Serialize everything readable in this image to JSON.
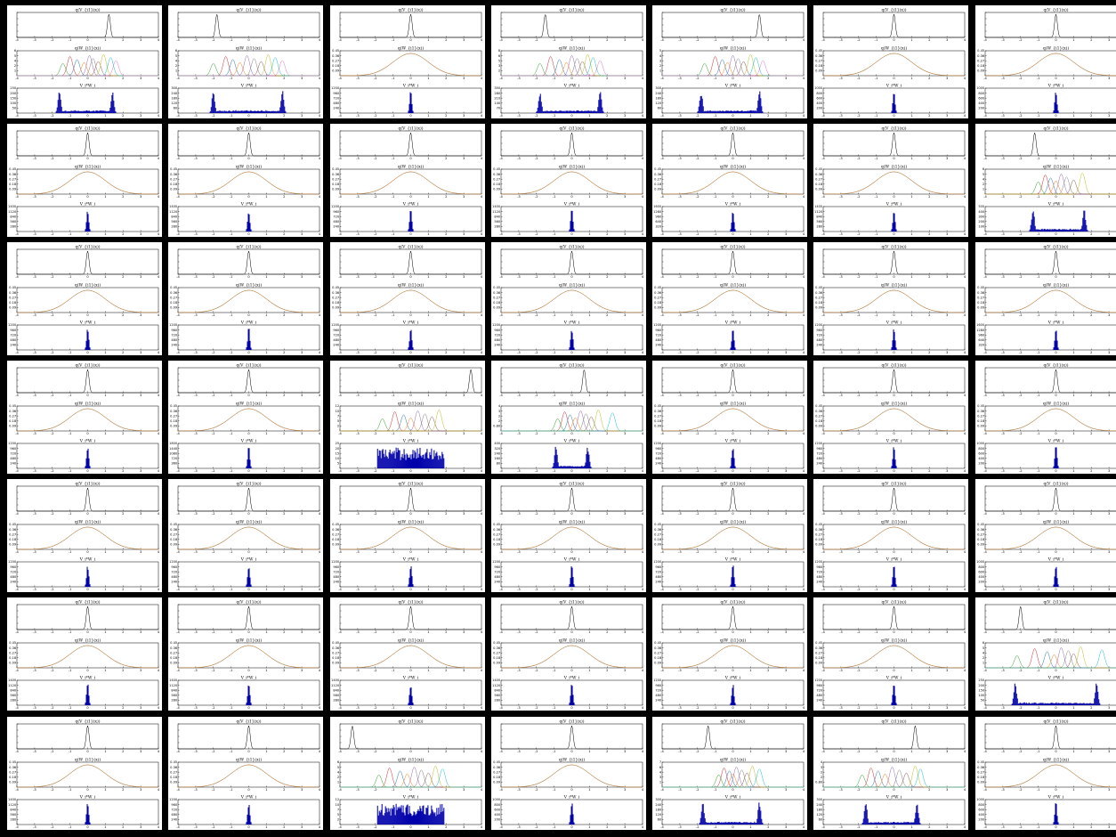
{
  "figure": {
    "rows": 7,
    "cols": 7,
    "titles": [
      "q(V_{i1}(x))",
      "q(W_{i1}(x))",
      "V_i*W_i"
    ],
    "x_ticks": [
      "-4",
      "-3",
      "-2",
      "-1",
      "0",
      "1",
      "2",
      "3",
      "4"
    ]
  },
  "colors": {
    "panel_bg": "#ffffff",
    "separator": "#000000",
    "top_curve": "#000000",
    "hist": "#0000aa",
    "gauss": "#a0786a",
    "mix": [
      "#2ca02c",
      "#d62728",
      "#1f77b4",
      "#ff7f0e",
      "#9467bd",
      "#7f7f7f",
      "#8c564b",
      "#bcbd22",
      "#17becf",
      "#e377c2"
    ]
  },
  "chart_data": {
    "type": "grid-of-small-multiples",
    "panels": [
      {
        "id": "r1c1",
        "top_peak": 1.2,
        "mid": {
          "kind": "mix",
          "centers": [
            -1.4,
            -1.0,
            -0.6,
            -0.2,
            0.1,
            0.3,
            0.6,
            0.9,
            1.3,
            1.6
          ],
          "ymax": 6
        },
        "hist": {
          "kind": "bimodal",
          "a": -1.6,
          "b": 1.4,
          "ymax": 250
        }
      },
      {
        "id": "r1c2",
        "top_peak": -1.8,
        "mid": {
          "kind": "mix",
          "centers": [
            -2.0,
            -1.3,
            -0.9,
            -0.5,
            -0.1,
            0.3,
            0.7,
            1.1,
            1.5,
            1.9
          ],
          "ymax": 6
        },
        "hist": {
          "kind": "bimodal",
          "a": -2.0,
          "b": 1.9,
          "ymax": 300
        }
      },
      {
        "id": "r1c3",
        "top_peak": 0.0,
        "mid": {
          "kind": "gauss",
          "ymax": 0.45
        },
        "hist": {
          "kind": "spike",
          "ymax": 1200
        }
      },
      {
        "id": "r1c4",
        "top_peak": -1.5,
        "mid": {
          "kind": "mix",
          "centers": [
            -1.8,
            -1.2,
            -0.7,
            -0.3,
            0.0,
            0.3,
            0.6,
            0.9,
            1.2,
            1.6
          ],
          "ymax": 8
        },
        "hist": {
          "kind": "bimodal",
          "a": -1.8,
          "b": 1.6,
          "ymax": 350
        }
      },
      {
        "id": "r1c5",
        "top_peak": 1.5,
        "mid": {
          "kind": "mix",
          "centers": [
            -1.6,
            -1.0,
            -0.6,
            -0.3,
            0.0,
            0.3,
            0.6,
            1.0,
            1.3,
            1.7
          ],
          "ymax": 5
        },
        "hist": {
          "kind": "bimodal",
          "a": -1.8,
          "b": 1.5,
          "ymax": 300
        }
      },
      {
        "id": "r1c6",
        "top_peak": 0.0,
        "mid": {
          "kind": "gauss",
          "ymax": 0.45
        },
        "hist": {
          "kind": "spike",
          "ymax": 1000
        }
      },
      {
        "id": "r1c7",
        "top_peak": 0.0,
        "mid": {
          "kind": "gauss",
          "ymax": 0.45
        },
        "hist": {
          "kind": "spike",
          "ymax": 1000
        }
      },
      {
        "id": "r2c1",
        "top_peak": 0.0,
        "mid": {
          "kind": "gauss",
          "ymax": 0.45
        },
        "hist": {
          "kind": "spike",
          "ymax": 1400
        }
      },
      {
        "id": "r2c2",
        "top_peak": 0.0,
        "mid": {
          "kind": "gauss",
          "ymax": 0.45
        },
        "hist": {
          "kind": "spike",
          "ymax": 1400
        }
      },
      {
        "id": "r2c3",
        "top_peak": 0.0,
        "mid": {
          "kind": "gauss",
          "ymax": 0.45
        },
        "hist": {
          "kind": "spike",
          "ymax": 1200
        }
      },
      {
        "id": "r2c4",
        "top_peak": 0.0,
        "mid": {
          "kind": "gauss",
          "ymax": 0.45
        },
        "hist": {
          "kind": "spike",
          "ymax": 1400
        }
      },
      {
        "id": "r2c5",
        "top_peak": 0.0,
        "mid": {
          "kind": "gauss",
          "ymax": 0.45
        },
        "hist": {
          "kind": "spike",
          "ymax": 1600
        }
      },
      {
        "id": "r2c6",
        "top_peak": 0.0,
        "mid": {
          "kind": "gauss",
          "ymax": 0.45
        },
        "hist": {
          "kind": "spike",
          "ymax": 1400
        }
      },
      {
        "id": "r2c7",
        "top_peak": -1.2,
        "mid": {
          "kind": "mix",
          "centers": [
            -1.0,
            -0.6,
            -0.3,
            0.0,
            0.3,
            0.6,
            1.0,
            1.5
          ],
          "ymax": 6
        },
        "hist": {
          "kind": "bimodal",
          "a": -1.3,
          "b": 1.6,
          "ymax": 500
        }
      },
      {
        "id": "r3c1",
        "top_peak": 0.0,
        "mid": {
          "kind": "gauss",
          "ymax": 0.45
        },
        "hist": {
          "kind": "spike",
          "ymax": 1200
        }
      },
      {
        "id": "r3c2",
        "top_peak": 0.0,
        "mid": {
          "kind": "gauss",
          "ymax": 0.45
        },
        "hist": {
          "kind": "spike",
          "ymax": 1200
        }
      },
      {
        "id": "r3c3",
        "top_peak": 0.0,
        "mid": {
          "kind": "gauss",
          "ymax": 0.45
        },
        "hist": {
          "kind": "spike",
          "ymax": 1200
        }
      },
      {
        "id": "r3c4",
        "top_peak": 0.0,
        "mid": {
          "kind": "gauss",
          "ymax": 0.45
        },
        "hist": {
          "kind": "spike",
          "ymax": 1200
        }
      },
      {
        "id": "r3c5",
        "top_peak": 0.0,
        "mid": {
          "kind": "gauss",
          "ymax": 0.45
        },
        "hist": {
          "kind": "spike",
          "ymax": 1200
        }
      },
      {
        "id": "r3c6",
        "top_peak": 0.0,
        "mid": {
          "kind": "gauss",
          "ymax": 0.45
        },
        "hist": {
          "kind": "spike",
          "ymax": 1200
        }
      },
      {
        "id": "r3c7",
        "top_peak": 0.0,
        "mid": {
          "kind": "gauss",
          "ymax": 0.45
        },
        "hist": {
          "kind": "spike",
          "ymax": 1600
        }
      },
      {
        "id": "r4c1",
        "top_peak": 0.0,
        "mid": {
          "kind": "gauss",
          "ymax": 0.45
        },
        "hist": {
          "kind": "spike",
          "ymax": 1200
        }
      },
      {
        "id": "r4c2",
        "top_peak": 0.0,
        "mid": {
          "kind": "gauss",
          "ymax": 0.45
        },
        "hist": {
          "kind": "spike",
          "ymax": 1800
        }
      },
      {
        "id": "r4c3",
        "top_peak": 3.4,
        "mid": {
          "kind": "mix",
          "centers": [
            -1.6,
            -0.9,
            -0.4,
            0.0,
            0.4,
            0.8,
            1.2,
            1.6
          ],
          "ymax": 12
        },
        "hist": {
          "kind": "flat",
          "ymax": 25
        }
      },
      {
        "id": "r4c4",
        "top_peak": 0.7,
        "mid": {
          "kind": "mix",
          "centers": [
            -0.8,
            -0.4,
            -0.1,
            0.2,
            0.5,
            0.8,
            1.1,
            1.5,
            2.3
          ],
          "ymax": 4
        },
        "hist": {
          "kind": "bimodal",
          "a": -0.9,
          "b": 0.9,
          "ymax": 400
        }
      },
      {
        "id": "r4c5",
        "top_peak": 0.0,
        "mid": {
          "kind": "gauss",
          "ymax": 0.45
        },
        "hist": {
          "kind": "spike",
          "ymax": 1200
        }
      },
      {
        "id": "r4c6",
        "top_peak": 0.0,
        "mid": {
          "kind": "gauss",
          "ymax": 0.45
        },
        "hist": {
          "kind": "spike",
          "ymax": 1200
        }
      },
      {
        "id": "r4c7",
        "top_peak": 0.0,
        "mid": {
          "kind": "gauss",
          "ymax": 0.45
        },
        "hist": {
          "kind": "spike",
          "ymax": 1000
        }
      },
      {
        "id": "r5c1",
        "top_peak": 0.0,
        "mid": {
          "kind": "gauss",
          "ymax": 0.45
        },
        "hist": {
          "kind": "spike",
          "ymax": 1200
        }
      },
      {
        "id": "r5c2",
        "top_peak": 0.0,
        "mid": {
          "kind": "gauss",
          "ymax": 0.45
        },
        "hist": {
          "kind": "spike",
          "ymax": 1200
        }
      },
      {
        "id": "r5c3",
        "top_peak": 0.0,
        "mid": {
          "kind": "gauss",
          "ymax": 0.45
        },
        "hist": {
          "kind": "spike",
          "ymax": 1200
        }
      },
      {
        "id": "r5c4",
        "top_peak": 0.0,
        "mid": {
          "kind": "gauss",
          "ymax": 0.45
        },
        "hist": {
          "kind": "spike",
          "ymax": 1200
        }
      },
      {
        "id": "r5c5",
        "top_peak": 0.0,
        "mid": {
          "kind": "gauss",
          "ymax": 0.45
        },
        "hist": {
          "kind": "spike",
          "ymax": 1200
        }
      },
      {
        "id": "r5c6",
        "top_peak": 0.0,
        "mid": {
          "kind": "gauss",
          "ymax": 0.45
        },
        "hist": {
          "kind": "spike",
          "ymax": 1200
        }
      },
      {
        "id": "r5c7",
        "top_peak": 0.0,
        "mid": {
          "kind": "gauss",
          "ymax": 0.45
        },
        "hist": {
          "kind": "spike",
          "ymax": 1000
        }
      },
      {
        "id": "r6c1",
        "top_peak": 0.0,
        "mid": {
          "kind": "gauss",
          "ymax": 0.45
        },
        "hist": {
          "kind": "spike",
          "ymax": 1400
        }
      },
      {
        "id": "r6c2",
        "top_peak": 0.0,
        "mid": {
          "kind": "gauss",
          "ymax": 0.45
        },
        "hist": {
          "kind": "spike",
          "ymax": 1400
        }
      },
      {
        "id": "r6c3",
        "top_peak": 0.0,
        "mid": {
          "kind": "gauss",
          "ymax": 0.45
        },
        "hist": {
          "kind": "spike",
          "ymax": 1400
        }
      },
      {
        "id": "r6c4",
        "top_peak": 0.0,
        "mid": {
          "kind": "gauss",
          "ymax": 0.45
        },
        "hist": {
          "kind": "spike",
          "ymax": 1400
        }
      },
      {
        "id": "r6c5",
        "top_peak": 0.0,
        "mid": {
          "kind": "gauss",
          "ymax": 0.45
        },
        "hist": {
          "kind": "spike",
          "ymax": 1200
        }
      },
      {
        "id": "r6c6",
        "top_peak": 0.0,
        "mid": {
          "kind": "gauss",
          "ymax": 0.45
        },
        "hist": {
          "kind": "spike",
          "ymax": 1200
        }
      },
      {
        "id": "r6c7",
        "top_peak": -2.0,
        "mid": {
          "kind": "mix",
          "centers": [
            -2.2,
            -1.2,
            -0.5,
            -0.1,
            0.3,
            0.7,
            1.0,
            1.4,
            2.6
          ],
          "ymax": 6
        },
        "hist": {
          "kind": "bimodal",
          "a": -2.3,
          "b": 2.3,
          "ymax": 250
        }
      },
      {
        "id": "r7c1",
        "top_peak": 0.0,
        "mid": {
          "kind": "gauss",
          "ymax": 0.45
        },
        "hist": {
          "kind": "spike",
          "ymax": 1400
        }
      },
      {
        "id": "r7c2",
        "top_peak": 0.0,
        "mid": {
          "kind": "gauss",
          "ymax": 0.45
        },
        "hist": {
          "kind": "spike",
          "ymax": 1200
        }
      },
      {
        "id": "r7c3",
        "top_peak": -3.3,
        "mid": {
          "kind": "mix",
          "centers": [
            -1.8,
            -1.2,
            -0.6,
            -0.2,
            0.2,
            0.6,
            1.0,
            1.4,
            1.8
          ],
          "ymax": 6
        },
        "hist": {
          "kind": "flat",
          "ymax": 12
        }
      },
      {
        "id": "r7c4",
        "top_peak": 0.0,
        "mid": {
          "kind": "gauss",
          "ymax": 0.45
        },
        "hist": {
          "kind": "spike",
          "ymax": 1000
        }
      },
      {
        "id": "r7c5",
        "top_peak": -1.4,
        "mid": {
          "kind": "mix",
          "centers": [
            -0.8,
            -0.5,
            -0.2,
            0.0,
            0.2,
            0.5,
            0.8,
            1.1,
            1.5
          ],
          "ymax": 7
        },
        "hist": {
          "kind": "bimodal",
          "a": -1.7,
          "b": 1.5,
          "ymax": 300
        }
      },
      {
        "id": "r7c6",
        "top_peak": 1.2,
        "mid": {
          "kind": "mix",
          "centers": [
            -1.8,
            -1.3,
            -0.9,
            -0.5,
            -0.1,
            0.3,
            0.7,
            1.2,
            1.5
          ],
          "ymax": 4
        },
        "hist": {
          "kind": "bimodal",
          "a": -1.6,
          "b": 1.3,
          "ymax": 300
        }
      },
      {
        "id": "r7c7",
        "top_peak": 0.0,
        "mid": {
          "kind": "gauss",
          "ymax": 0.45
        },
        "hist": {
          "kind": "spike",
          "ymax": 1000
        }
      }
    ]
  }
}
